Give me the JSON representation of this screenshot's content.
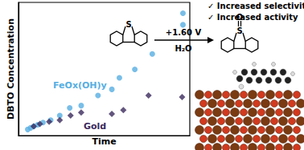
{
  "chart_data": {
    "type": "scatter",
    "x_label": "Time",
    "y_label": "DBTO Concentration",
    "xlim": [
      0,
      10
    ],
    "ylim": [
      0,
      10
    ],
    "xticks": [],
    "yticks": [],
    "tick_labels": false,
    "grid": false,
    "series": [
      {
        "name": "FeOx(OH)y",
        "color": "#56aee2",
        "marker": "circle",
        "x": [
          0.54,
          0.71,
          0.89,
          1.12,
          1.43,
          1.88,
          2.41,
          2.99,
          3.66,
          4.64,
          5.45,
          5.89,
          6.79,
          7.81,
          9.6,
          9.6
        ],
        "values": [
          0.46,
          0.58,
          0.69,
          0.81,
          0.98,
          1.16,
          1.5,
          2.08,
          2.25,
          3.01,
          3.47,
          4.34,
          4.97,
          6.13,
          8.32,
          9.19
        ]
      },
      {
        "name": "Gold",
        "color": "#3b2a5c",
        "marker": "diamond",
        "x": [
          0.89,
          1.25,
          1.79,
          2.41,
          3.04,
          3.66,
          5.45,
          6.12,
          7.59,
          9.55
        ],
        "values": [
          0.69,
          0.87,
          1.04,
          1.16,
          1.5,
          1.73,
          1.62,
          1.91,
          3.01,
          2.89
        ]
      }
    ],
    "annotations": [
      "✓ Increased selectivity",
      "✓ Increased activity",
      "+1.60 V",
      "H₂O",
      "S",
      "O"
    ]
  }
}
